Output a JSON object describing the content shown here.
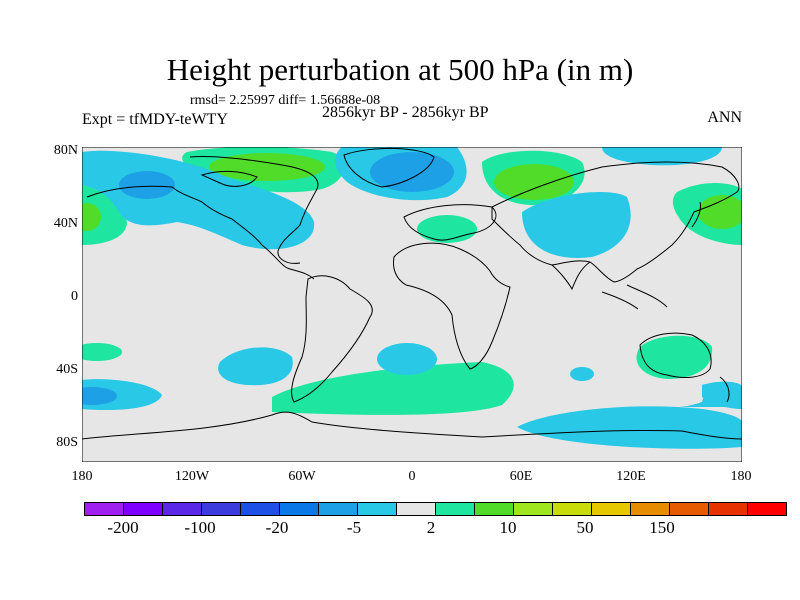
{
  "title": "Height perturbation at 500 hPa (in m)",
  "stats": "rmsd= 2.25997 diff= 1.56688e-08",
  "experiment": "Expt = tfMDY-teWTY",
  "period": "2856kyr BP - 2856kyr BP",
  "season": "ANN",
  "lat_labels": [
    "80N",
    "40N",
    "0",
    "40S",
    "80S"
  ],
  "lon_labels": [
    "180",
    "120W",
    "60W",
    "0",
    "60E",
    "120E",
    "180"
  ],
  "colorbar": {
    "colors": [
      "#a020f0",
      "#7f00ff",
      "#5a28e6",
      "#3c3cdc",
      "#1e50e6",
      "#0a78e6",
      "#1ea0e6",
      "#28c8e6",
      "#e6e6e6",
      "#1ee6a0",
      "#50dc28",
      "#a0e61e",
      "#c8dc0a",
      "#e6c800",
      "#e68c00",
      "#e65a00",
      "#e63200",
      "#ff0000"
    ],
    "labels": [
      "-200",
      "-100",
      "-20",
      "-5",
      "2",
      "10",
      "50",
      "150"
    ]
  },
  "palette": {
    "blue": "#28c8e6",
    "darkblue": "#1ea0e6",
    "green": "#1ee6a0",
    "lime": "#50dc28",
    "background": "#e6e6e6"
  }
}
